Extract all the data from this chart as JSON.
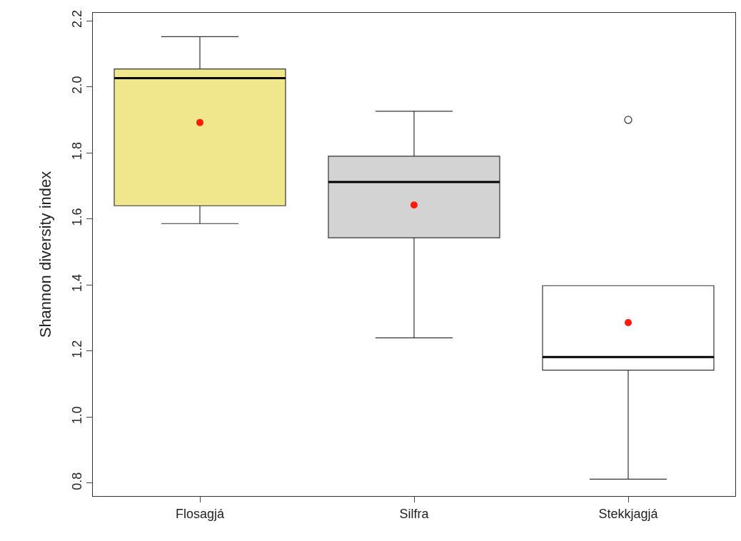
{
  "chart_data": {
    "type": "box",
    "ylabel": "Shannon diversity index",
    "categories": [
      "Flosagjá",
      "Silfra",
      "Stekkjagjá"
    ],
    "colors": [
      "#f0e68c",
      "#d3d3d3",
      "#ffffff"
    ],
    "boxes": [
      {
        "low": 1.586,
        "q1": 1.64,
        "median": 2.026,
        "q3": 2.054,
        "high": 2.152,
        "mean": 1.892
      },
      {
        "low": 1.24,
        "q1": 1.543,
        "median": 1.712,
        "q3": 1.79,
        "high": 1.926,
        "mean": 1.642
      },
      {
        "low": 0.812,
        "q1": 1.142,
        "median": 1.182,
        "q3": 1.398,
        "high": 1.398,
        "mean": 1.286,
        "outliers": [
          1.9
        ]
      }
    ],
    "ylim": [
      0.761,
      2.224
    ],
    "yticks": [
      0.8,
      {
        "value": 1,
        "label": "1.0"
      },
      1.2,
      1.4,
      1.6,
      1.8,
      {
        "value": 2,
        "label": "2.0"
      },
      2.2
    ]
  }
}
